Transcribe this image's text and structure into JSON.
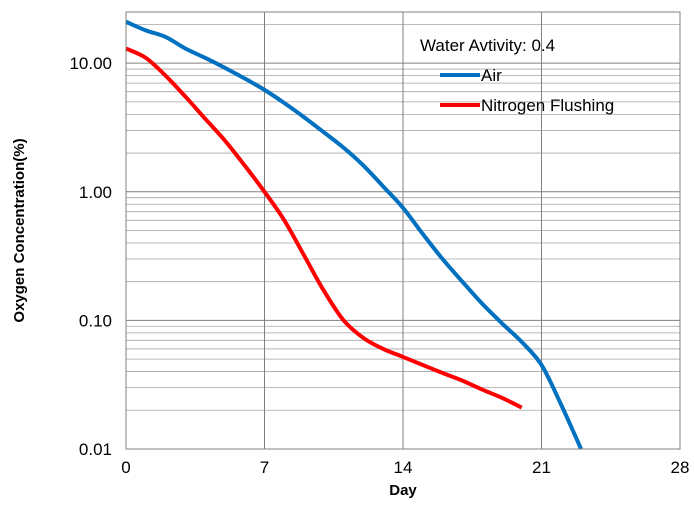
{
  "chart_data": {
    "type": "line",
    "xlabel": "Day",
    "ylabel": "Oxygen Concentration(%)",
    "x_scale": "linear",
    "y_scale": "log",
    "xlim": [
      0,
      28
    ],
    "ylim": [
      0.01,
      25
    ],
    "x_ticks": [
      0,
      7,
      14,
      21,
      28
    ],
    "y_ticks": [
      0.01,
      0.1,
      1,
      10
    ],
    "y_tick_labels": [
      "0.01",
      "0.10",
      "1.00",
      "10.00"
    ],
    "grid": true,
    "legend": {
      "title": "Water Avtivity: 0.4",
      "position": "top-right"
    },
    "series": [
      {
        "name": "Air",
        "color": "#0070C0",
        "x": [
          0,
          1,
          2,
          3,
          4,
          5,
          6,
          7,
          8,
          9,
          10,
          11,
          12,
          13,
          14,
          15,
          16,
          17,
          18,
          19,
          20,
          21,
          22,
          23
        ],
        "y": [
          21,
          18,
          16,
          13,
          11,
          9.2,
          7.6,
          6.2,
          4.9,
          3.8,
          2.9,
          2.2,
          1.6,
          1.1,
          0.75,
          0.47,
          0.3,
          0.2,
          0.135,
          0.095,
          0.068,
          0.045,
          0.022,
          0.01
        ]
      },
      {
        "name": "Nitrogen Flushing",
        "color": "#FF0000",
        "x": [
          0,
          1,
          2,
          3,
          4,
          5,
          6,
          7,
          8,
          9,
          10,
          11,
          12,
          13,
          14,
          15,
          16,
          17,
          18,
          19,
          20
        ],
        "y": [
          13,
          11,
          8,
          5.5,
          3.7,
          2.5,
          1.6,
          1.0,
          0.6,
          0.32,
          0.17,
          0.1,
          0.073,
          0.06,
          0.052,
          0.045,
          0.039,
          0.034,
          0.029,
          0.025,
          0.021
        ]
      }
    ]
  }
}
